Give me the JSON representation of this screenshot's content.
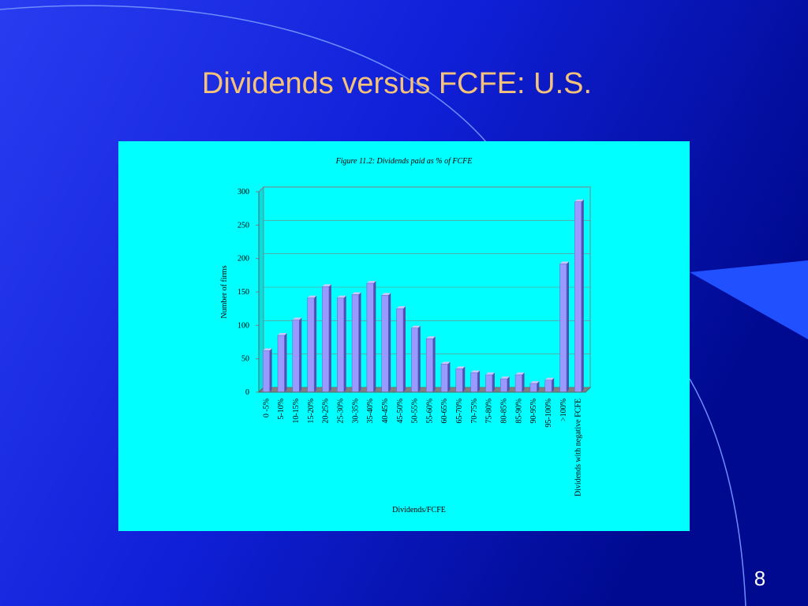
{
  "slide_title": "Dividends versus FCFE: U.S.",
  "page_number": "8",
  "chart_data": {
    "type": "bar",
    "title": "Figure 11.2: Dividends paid as % of FCFE",
    "x_label": "Dividends/FCFE",
    "y_label": "Number of firms",
    "categories": [
      "0 -5%",
      "5-10%",
      "10-15%",
      "15-20%",
      "20-25%",
      "25-30%",
      "30-35%",
      "35-40%",
      "40-45%",
      "45-50%",
      "50-55%",
      "55-60%",
      "60-65%",
      "65-70%",
      "70-75%",
      "75-80%",
      "80-85%",
      "85-90%",
      "90-95%",
      "95-100%",
      ">100%",
      "Dividends with negative FCFE"
    ],
    "values": [
      62,
      85,
      108,
      141,
      158,
      141,
      146,
      163,
      145,
      125,
      96,
      80,
      42,
      35,
      29,
      26,
      20,
      26,
      13,
      18,
      192,
      285
    ],
    "color": "#9999ff",
    "ylim": [
      0,
      300
    ],
    "yticks": [
      0,
      50,
      100,
      150,
      200,
      250,
      300
    ],
    "grid": true
  }
}
